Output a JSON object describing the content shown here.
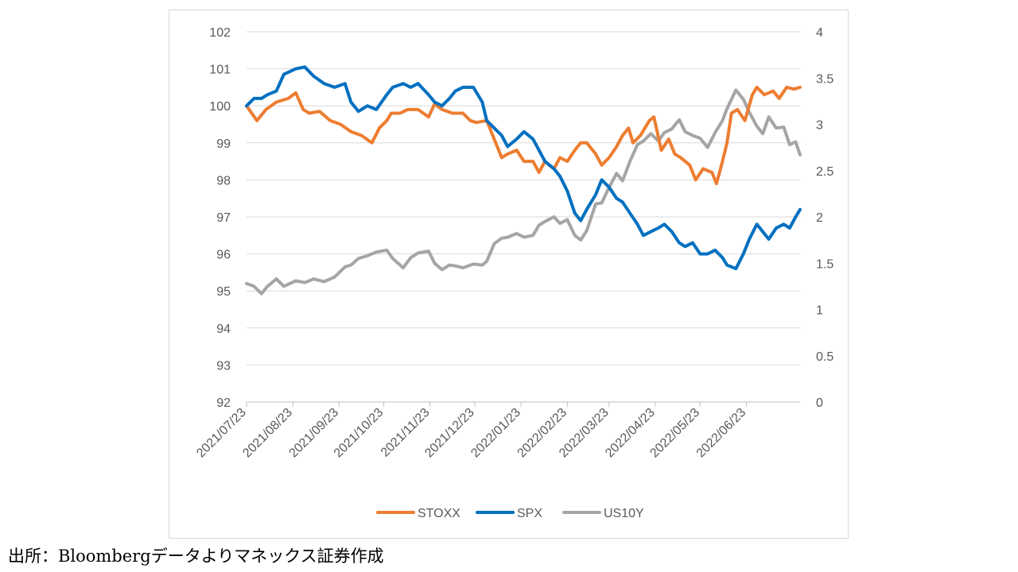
{
  "source_note": "出所：Bloombergデータよりマネックス証券作成",
  "chart_data": {
    "type": "line",
    "title": "",
    "x_tick_labels": [
      "2021/07/23",
      "2021/08/23",
      "2021/09/23",
      "2021/10/23",
      "2021/11/23",
      "2021/12/23",
      "2022/01/23",
      "2022/02/23",
      "2022/03/23",
      "2022/04/23",
      "2022/05/23",
      "2022/06/23"
    ],
    "x_start": "2021/07/23",
    "x_end": "2022/07/29",
    "y_left": {
      "min": 92,
      "max": 102,
      "ticks": [
        "92",
        "93",
        "94",
        "95",
        "96",
        "97",
        "98",
        "99",
        "100",
        "101",
        "102"
      ]
    },
    "y_right": {
      "min": 0,
      "max": 4,
      "ticks": [
        "0",
        "0.5",
        "1",
        "1.5",
        "2",
        "2.5",
        "3",
        "3.5",
        "4"
      ]
    },
    "grid": true,
    "legend": "bottom",
    "series": [
      {
        "name": "STOXX",
        "axis": "left",
        "color": "#ED7D31",
        "points": [
          [
            "2021/07/23",
            100.0
          ],
          [
            "2021/07/30",
            99.6
          ],
          [
            "2021/08/05",
            99.9
          ],
          [
            "2021/08/12",
            100.1
          ],
          [
            "2021/08/20",
            100.2
          ],
          [
            "2021/08/25",
            100.35
          ],
          [
            "2021/08/30",
            99.9
          ],
          [
            "2021/09/03",
            99.8
          ],
          [
            "2021/09/10",
            99.85
          ],
          [
            "2021/09/17",
            99.6
          ],
          [
            "2021/09/24",
            99.5
          ],
          [
            "2021/10/01",
            99.3
          ],
          [
            "2021/10/08",
            99.2
          ],
          [
            "2021/10/15",
            99.0
          ],
          [
            "2021/10/20",
            99.4
          ],
          [
            "2021/10/25",
            99.6
          ],
          [
            "2021/10/28",
            99.8
          ],
          [
            "2021/11/03",
            99.8
          ],
          [
            "2021/11/08",
            99.9
          ],
          [
            "2021/11/15",
            99.9
          ],
          [
            "2021/11/22",
            99.7
          ],
          [
            "2021/11/26",
            100.05
          ],
          [
            "2021/12/01",
            99.9
          ],
          [
            "2021/12/08",
            99.8
          ],
          [
            "2021/12/15",
            99.8
          ],
          [
            "2021/12/20",
            99.6
          ],
          [
            "2021/12/24",
            99.55
          ],
          [
            "2021/12/31",
            99.6
          ],
          [
            "2022/01/05",
            99.1
          ],
          [
            "2022/01/10",
            98.6
          ],
          [
            "2022/01/14",
            98.7
          ],
          [
            "2022/01/20",
            98.8
          ],
          [
            "2022/01/25",
            98.5
          ],
          [
            "2022/01/31",
            98.5
          ],
          [
            "2022/02/04",
            98.2
          ],
          [
            "2022/02/08",
            98.5
          ],
          [
            "2022/02/14",
            98.3
          ],
          [
            "2022/02/18",
            98.6
          ],
          [
            "2022/02/23",
            98.5
          ],
          [
            "2022/02/28",
            98.8
          ],
          [
            "2022/03/04",
            99.0
          ],
          [
            "2022/03/08",
            99.0
          ],
          [
            "2022/03/14",
            98.7
          ],
          [
            "2022/03/18",
            98.4
          ],
          [
            "2022/03/23",
            98.6
          ],
          [
            "2022/03/28",
            98.9
          ],
          [
            "2022/04/01",
            99.2
          ],
          [
            "2022/04/05",
            99.4
          ],
          [
            "2022/04/08",
            99.0
          ],
          [
            "2022/04/13",
            99.2
          ],
          [
            "2022/04/19",
            99.6
          ],
          [
            "2022/04/22",
            99.7
          ],
          [
            "2022/04/27",
            98.8
          ],
          [
            "2022/05/02",
            99.1
          ],
          [
            "2022/05/06",
            98.7
          ],
          [
            "2022/05/10",
            98.6
          ],
          [
            "2022/05/16",
            98.4
          ],
          [
            "2022/05/20",
            98.0
          ],
          [
            "2022/05/25",
            98.3
          ],
          [
            "2022/05/31",
            98.2
          ],
          [
            "2022/06/03",
            97.9
          ],
          [
            "2022/06/07",
            98.5
          ],
          [
            "2022/06/10",
            99.0
          ],
          [
            "2022/06/13",
            99.8
          ],
          [
            "2022/06/17",
            99.9
          ],
          [
            "2022/06/22",
            99.6
          ],
          [
            "2022/06/27",
            100.3
          ],
          [
            "2022/06/30",
            100.5
          ],
          [
            "2022/07/05",
            100.3
          ],
          [
            "2022/07/11",
            100.4
          ],
          [
            "2022/07/15",
            100.2
          ],
          [
            "2022/07/20",
            100.5
          ],
          [
            "2022/07/25",
            100.45
          ],
          [
            "2022/07/29",
            100.5
          ]
        ]
      },
      {
        "name": "SPX",
        "axis": "left",
        "color": "#0070C0",
        "points": [
          [
            "2021/07/23",
            100.0
          ],
          [
            "2021/07/28",
            100.2
          ],
          [
            "2021/08/02",
            100.2
          ],
          [
            "2021/08/06",
            100.3
          ],
          [
            "2021/08/12",
            100.4
          ],
          [
            "2021/08/17",
            100.85
          ],
          [
            "2021/08/25",
            101.0
          ],
          [
            "2021/08/31",
            101.05
          ],
          [
            "2021/09/06",
            100.8
          ],
          [
            "2021/09/13",
            100.6
          ],
          [
            "2021/09/20",
            100.5
          ],
          [
            "2021/09/27",
            100.6
          ],
          [
            "2021/10/01",
            100.1
          ],
          [
            "2021/10/06",
            99.85
          ],
          [
            "2021/10/12",
            100.0
          ],
          [
            "2021/10/18",
            99.9
          ],
          [
            "2021/10/25",
            100.3
          ],
          [
            "2021/10/29",
            100.5
          ],
          [
            "2021/11/05",
            100.6
          ],
          [
            "2021/11/10",
            100.5
          ],
          [
            "2021/11/15",
            100.6
          ],
          [
            "2021/11/22",
            100.3
          ],
          [
            "2021/11/26",
            100.1
          ],
          [
            "2021/12/01",
            100.0
          ],
          [
            "2021/12/06",
            100.2
          ],
          [
            "2021/12/10",
            100.4
          ],
          [
            "2021/12/15",
            100.5
          ],
          [
            "2021/12/22",
            100.5
          ],
          [
            "2021/12/28",
            100.1
          ],
          [
            "2021/12/31",
            99.6
          ],
          [
            "2022/01/05",
            99.4
          ],
          [
            "2022/01/10",
            99.2
          ],
          [
            "2022/01/14",
            98.9
          ],
          [
            "2022/01/20",
            99.1
          ],
          [
            "2022/01/25",
            99.3
          ],
          [
            "2022/01/31",
            99.1
          ],
          [
            "2022/02/04",
            98.8
          ],
          [
            "2022/02/08",
            98.5
          ],
          [
            "2022/02/14",
            98.3
          ],
          [
            "2022/02/18",
            98.1
          ],
          [
            "2022/02/23",
            97.7
          ],
          [
            "2022/02/28",
            97.1
          ],
          [
            "2022/03/04",
            96.9
          ],
          [
            "2022/03/08",
            97.2
          ],
          [
            "2022/03/14",
            97.6
          ],
          [
            "2022/03/18",
            98.0
          ],
          [
            "2022/03/23",
            97.8
          ],
          [
            "2022/03/28",
            97.5
          ],
          [
            "2022/04/01",
            97.4
          ],
          [
            "2022/04/06",
            97.1
          ],
          [
            "2022/04/11",
            96.8
          ],
          [
            "2022/04/15",
            96.5
          ],
          [
            "2022/04/20",
            96.6
          ],
          [
            "2022/04/25",
            96.7
          ],
          [
            "2022/04/29",
            96.8
          ],
          [
            "2022/05/04",
            96.6
          ],
          [
            "2022/05/09",
            96.3
          ],
          [
            "2022/05/13",
            96.2
          ],
          [
            "2022/05/18",
            96.3
          ],
          [
            "2022/05/23",
            96.0
          ],
          [
            "2022/05/28",
            96.0
          ],
          [
            "2022/06/02",
            96.1
          ],
          [
            "2022/06/07",
            95.9
          ],
          [
            "2022/06/10",
            95.7
          ],
          [
            "2022/06/16",
            95.6
          ],
          [
            "2022/06/21",
            96.0
          ],
          [
            "2022/06/25",
            96.4
          ],
          [
            "2022/06/30",
            96.8
          ],
          [
            "2022/07/04",
            96.6
          ],
          [
            "2022/07/08",
            96.4
          ],
          [
            "2022/07/13",
            96.7
          ],
          [
            "2022/07/18",
            96.8
          ],
          [
            "2022/07/22",
            96.7
          ],
          [
            "2022/07/26",
            97.0
          ],
          [
            "2022/07/29",
            97.2
          ]
        ]
      },
      {
        "name": "US10Y",
        "axis": "right",
        "color": "#A5A5A5",
        "points": [
          [
            "2021/07/23",
            1.28
          ],
          [
            "2021/07/28",
            1.25
          ],
          [
            "2021/08/02",
            1.17
          ],
          [
            "2021/08/06",
            1.25
          ],
          [
            "2021/08/12",
            1.33
          ],
          [
            "2021/08/17",
            1.25
          ],
          [
            "2021/08/25",
            1.31
          ],
          [
            "2021/08/31",
            1.29
          ],
          [
            "2021/09/06",
            1.33
          ],
          [
            "2021/09/13",
            1.3
          ],
          [
            "2021/09/20",
            1.35
          ],
          [
            "2021/09/27",
            1.46
          ],
          [
            "2021/10/01",
            1.48
          ],
          [
            "2021/10/06",
            1.55
          ],
          [
            "2021/10/12",
            1.58
          ],
          [
            "2021/10/18",
            1.62
          ],
          [
            "2021/10/25",
            1.64
          ],
          [
            "2021/10/29",
            1.55
          ],
          [
            "2021/11/05",
            1.45
          ],
          [
            "2021/11/10",
            1.56
          ],
          [
            "2021/11/15",
            1.61
          ],
          [
            "2021/11/22",
            1.63
          ],
          [
            "2021/11/26",
            1.5
          ],
          [
            "2021/12/01",
            1.43
          ],
          [
            "2021/12/06",
            1.48
          ],
          [
            "2021/12/10",
            1.47
          ],
          [
            "2021/12/15",
            1.45
          ],
          [
            "2021/12/22",
            1.49
          ],
          [
            "2021/12/28",
            1.48
          ],
          [
            "2021/12/31",
            1.52
          ],
          [
            "2022/01/05",
            1.71
          ],
          [
            "2022/01/10",
            1.77
          ],
          [
            "2022/01/14",
            1.78
          ],
          [
            "2022/01/20",
            1.82
          ],
          [
            "2022/01/25",
            1.78
          ],
          [
            "2022/01/31",
            1.8
          ],
          [
            "2022/02/04",
            1.91
          ],
          [
            "2022/02/08",
            1.95
          ],
          [
            "2022/02/14",
            2.0
          ],
          [
            "2022/02/18",
            1.93
          ],
          [
            "2022/02/23",
            1.97
          ],
          [
            "2022/02/28",
            1.8
          ],
          [
            "2022/03/04",
            1.75
          ],
          [
            "2022/03/08",
            1.85
          ],
          [
            "2022/03/14",
            2.14
          ],
          [
            "2022/03/18",
            2.15
          ],
          [
            "2022/03/23",
            2.32
          ],
          [
            "2022/03/28",
            2.47
          ],
          [
            "2022/04/01",
            2.39
          ],
          [
            "2022/04/06",
            2.6
          ],
          [
            "2022/04/11",
            2.78
          ],
          [
            "2022/04/15",
            2.82
          ],
          [
            "2022/04/20",
            2.9
          ],
          [
            "2022/04/25",
            2.82
          ],
          [
            "2022/04/29",
            2.91
          ],
          [
            "2022/05/04",
            2.95
          ],
          [
            "2022/05/09",
            3.05
          ],
          [
            "2022/05/13",
            2.92
          ],
          [
            "2022/05/18",
            2.88
          ],
          [
            "2022/05/23",
            2.85
          ],
          [
            "2022/05/28",
            2.75
          ],
          [
            "2022/06/02",
            2.91
          ],
          [
            "2022/06/07",
            3.04
          ],
          [
            "2022/06/10",
            3.17
          ],
          [
            "2022/06/16",
            3.37
          ],
          [
            "2022/06/21",
            3.27
          ],
          [
            "2022/06/25",
            3.13
          ],
          [
            "2022/06/30",
            2.98
          ],
          [
            "2022/07/04",
            2.9
          ],
          [
            "2022/07/08",
            3.08
          ],
          [
            "2022/07/13",
            2.96
          ],
          [
            "2022/07/18",
            2.97
          ],
          [
            "2022/07/22",
            2.78
          ],
          [
            "2022/07/26",
            2.81
          ],
          [
            "2022/07/29",
            2.67
          ]
        ]
      }
    ]
  }
}
